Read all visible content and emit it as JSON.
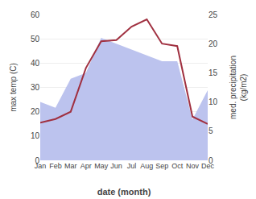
{
  "chart_data": {
    "type": "line",
    "xlabel": "date (month)",
    "ylabel": "max temp (C)",
    "y2label": "med. precipitation\n(kg/m2)",
    "categories": [
      "Jan",
      "Feb",
      "Mar",
      "Apr",
      "May",
      "Jun",
      "Jul",
      "Aug",
      "Sep",
      "Oct",
      "Nov",
      "Dec"
    ],
    "series": [
      {
        "type": "area",
        "axis": "y2",
        "color": "#bcc3ee",
        "values": [
          10.0,
          9.0,
          14.0,
          15.0,
          21.0,
          20.0,
          19.0,
          18.0,
          17.0,
          17.0,
          7.0,
          12.0
        ]
      },
      {
        "type": "line",
        "color": "#a03040",
        "values": [
          15.5,
          17.0,
          20.0,
          38.0,
          49.0,
          49.5,
          55.0,
          58.0,
          48.0,
          47.0,
          18.0,
          15.0
        ]
      }
    ],
    "ylim": [
      0,
      60
    ],
    "yticks": [
      0,
      10,
      20,
      30,
      40,
      50,
      60
    ],
    "y2lim": [
      0,
      25
    ],
    "y2ticks": [
      0,
      5,
      10,
      15,
      20,
      25
    ],
    "grid": true
  }
}
